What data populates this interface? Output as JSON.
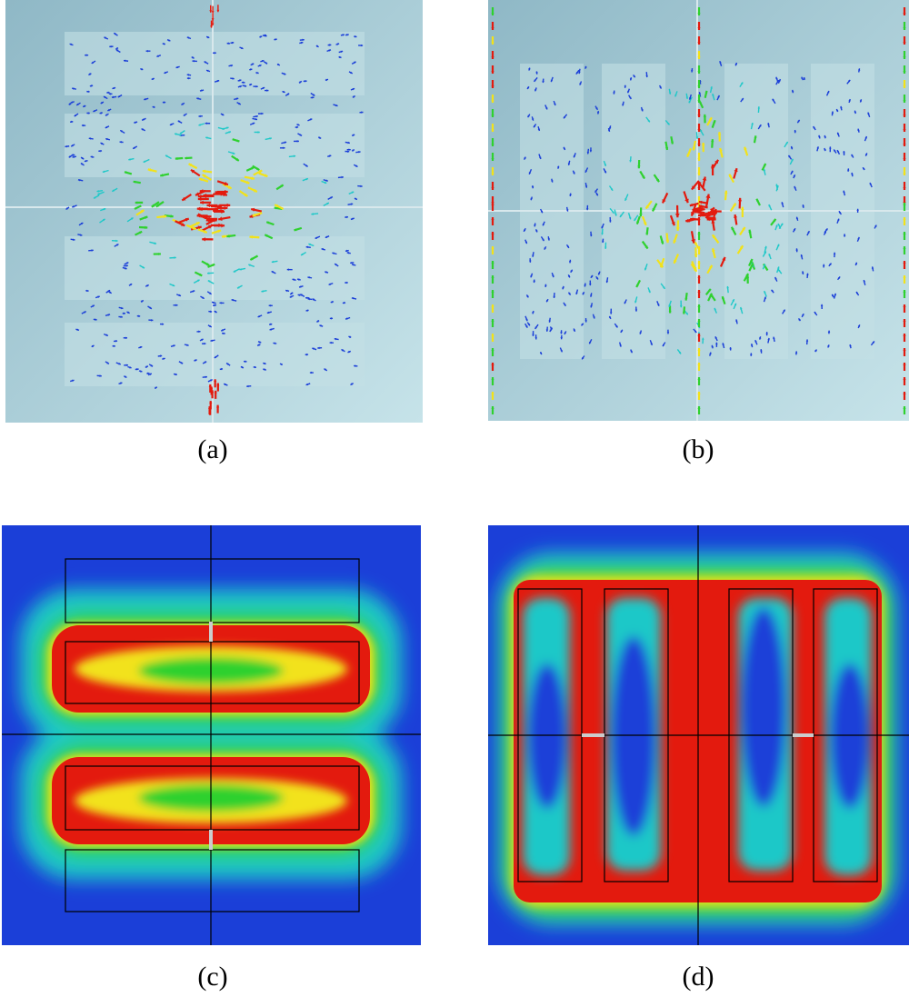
{
  "figure": {
    "panels": [
      {
        "id": "a",
        "caption": "(a)",
        "kind": "surface-current-vectors"
      },
      {
        "id": "b",
        "caption": "(b)",
        "kind": "surface-current-vectors"
      },
      {
        "id": "c",
        "caption": "(c)",
        "kind": "field-magnitude-map"
      },
      {
        "id": "d",
        "caption": "(d)",
        "kind": "field-magnitude-map"
      }
    ],
    "colors": {
      "substrate": "#a9cdd6",
      "high": "#e31a0e",
      "mid_high": "#f2e21a",
      "mid": "#2fd12f",
      "mid_low": "#1fc8c8",
      "low": "#1b3fd8"
    }
  }
}
